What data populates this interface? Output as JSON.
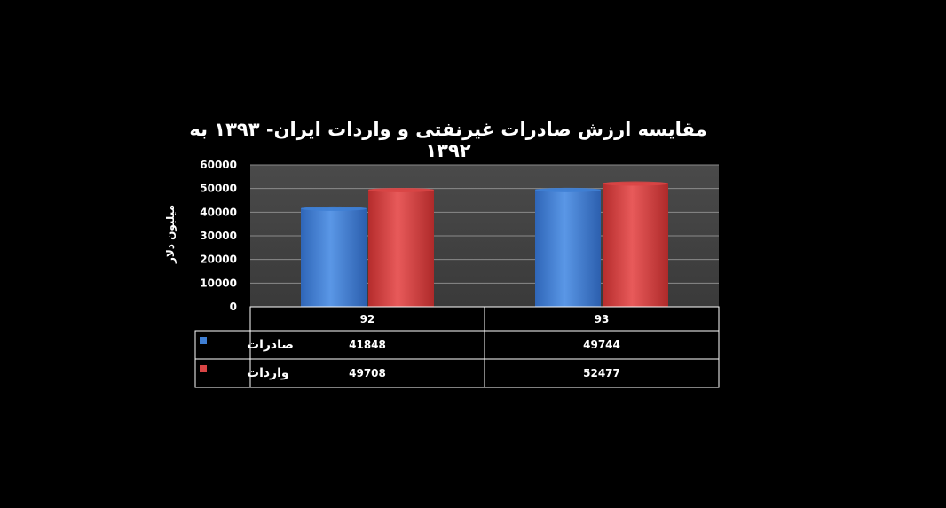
{
  "chart_data": {
    "type": "bar",
    "title": "مقایسه ارزش صادرات غیرنفتی و واردات ایران- ۱۳۹۳ به ۱۳۹۲",
    "ylabel": "میلیون دلار",
    "ylim": [
      0,
      60000
    ],
    "yticks": [
      0,
      10000,
      20000,
      30000,
      40000,
      50000,
      60000
    ],
    "categories": [
      "92",
      "93"
    ],
    "series": [
      {
        "name": "صادرات",
        "color": "#3f7fd4",
        "values": [
          41848,
          49744
        ]
      },
      {
        "name": "واردات",
        "color": "#d94545",
        "values": [
          49708,
          52477
        ]
      }
    ],
    "grid": true,
    "legend": "data-table"
  }
}
